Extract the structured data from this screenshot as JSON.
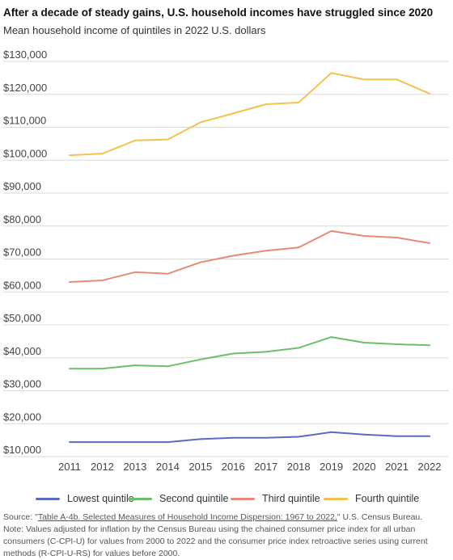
{
  "chart_data": {
    "type": "line",
    "title": "After a decade of steady gains, U.S. household incomes have struggled since 2020",
    "subtitle": "Mean household income of quintiles in 2022 U.S. dollars",
    "x": [
      "2011",
      "2012",
      "2013",
      "2014",
      "2015",
      "2016",
      "2017",
      "2018",
      "2019",
      "2020",
      "2021",
      "2022"
    ],
    "ylim": [
      10000,
      130000
    ],
    "yticks": [
      10000,
      20000,
      30000,
      40000,
      50000,
      60000,
      70000,
      80000,
      90000,
      100000,
      110000,
      120000,
      130000
    ],
    "ytick_labels": [
      "$10,000",
      "$20,000",
      "$30,000",
      "$40,000",
      "$50,000",
      "$60,000",
      "$70,000",
      "$80,000",
      "$90,000",
      "$100,000",
      "$110,000",
      "$120,000",
      "$130,000"
    ],
    "grid": true,
    "legend_position": "bottom",
    "series": [
      {
        "name": "Lowest quintile",
        "color": "#5b6bbf",
        "values": [
          14400,
          14400,
          14400,
          14400,
          15300,
          15700,
          15700,
          16000,
          17400,
          16700,
          16200,
          16200
        ]
      },
      {
        "name": "Second quintile",
        "color": "#6ac06a",
        "values": [
          36700,
          36700,
          37700,
          37400,
          39500,
          41300,
          41800,
          43000,
          46300,
          44600,
          44100,
          43800
        ]
      },
      {
        "name": "Third quintile",
        "color": "#e8897a",
        "values": [
          63000,
          63500,
          66000,
          65500,
          69000,
          71000,
          72500,
          73500,
          78500,
          77000,
          76500,
          74800
        ]
      },
      {
        "name": "Fourth quintile",
        "color": "#f2c24e",
        "values": [
          101500,
          102000,
          106000,
          106300,
          111500,
          114200,
          117000,
          117500,
          126500,
          124500,
          124500,
          120200
        ]
      }
    ]
  },
  "footer": {
    "source_prefix": "Source: \"",
    "source_link": "Table A-4b. Selected Measures of Household Income Dispersion: 1967 to 2022,",
    "source_suffix": "\" U.S. Census Bureau.",
    "note": "Note: Values adjusted for inflation by the Census Bureau using the chained consumer price index for all urban consumers (C-CPI-U) for values from 2000 to 2022 and the consumer price index retroactive series using current methods (R-CPI-U-RS) for values before 2000."
  }
}
